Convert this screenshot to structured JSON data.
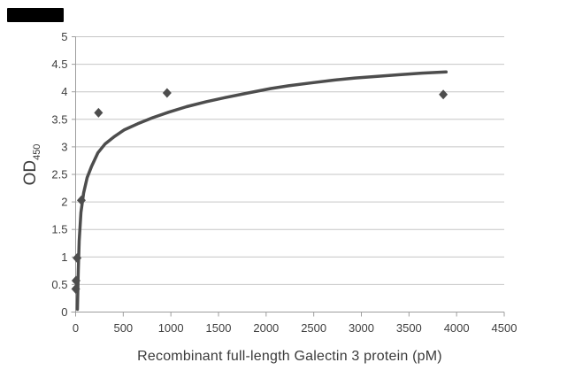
{
  "window": {
    "background": "#ffffff",
    "corner_box_color": "#000000"
  },
  "chart_data": {
    "type": "scatter",
    "title": "",
    "xlabel": "Recombinant full-length Galectin 3 protein (pM)",
    "ylabel": "OD 450",
    "ylabel_main": "OD",
    "ylabel_sub": "450",
    "xlim": [
      0,
      4500
    ],
    "ylim": [
      0,
      5
    ],
    "x_ticks": [
      "0",
      "500",
      "1000",
      "1500",
      "2000",
      "2500",
      "3000",
      "3500",
      "4000",
      "4500"
    ],
    "y_ticks": [
      "0",
      "0.5",
      "1",
      "1.5",
      "2",
      "2.5",
      "3",
      "3.5",
      "4",
      "4.5",
      "5"
    ],
    "grid": "horizontal-only",
    "legend_position": "none",
    "colors": {
      "series": "#4d4d4d",
      "gridline": "#c6c6c6",
      "axis": "#9e9e9e",
      "text": "#3f3f3f"
    },
    "series": [
      {
        "name": "measured standard points",
        "type": "scatter",
        "marker": "diamond",
        "color": "#4d4d4d",
        "points": [
          [
            1,
            0.42
          ],
          [
            4,
            0.57
          ],
          [
            15,
            0.98
          ],
          [
            60,
            2.03
          ],
          [
            240,
            3.62
          ],
          [
            960,
            3.98
          ],
          [
            3860,
            3.95
          ]
        ]
      },
      {
        "name": "fitted binding curve",
        "type": "line",
        "color": "#4d4d4d",
        "stroke_width": 3.5,
        "points": [
          [
            19,
            0.05
          ],
          [
            28,
            0.76
          ],
          [
            37,
            1.29
          ],
          [
            56,
            1.81
          ],
          [
            84,
            2.16
          ],
          [
            121,
            2.44
          ],
          [
            168,
            2.65
          ],
          [
            233,
            2.89
          ],
          [
            307,
            3.05
          ],
          [
            401,
            3.18
          ],
          [
            512,
            3.31
          ],
          [
            652,
            3.42
          ],
          [
            811,
            3.53
          ],
          [
            978,
            3.63
          ],
          [
            1165,
            3.73
          ],
          [
            1370,
            3.82
          ],
          [
            1584,
            3.9
          ],
          [
            1817,
            3.98
          ],
          [
            2050,
            4.06
          ],
          [
            2236,
            4.11
          ],
          [
            2469,
            4.16
          ],
          [
            2702,
            4.21
          ],
          [
            2935,
            4.25
          ],
          [
            3168,
            4.28
          ],
          [
            3401,
            4.31
          ],
          [
            3634,
            4.34
          ],
          [
            3890,
            4.36
          ]
        ]
      }
    ]
  }
}
